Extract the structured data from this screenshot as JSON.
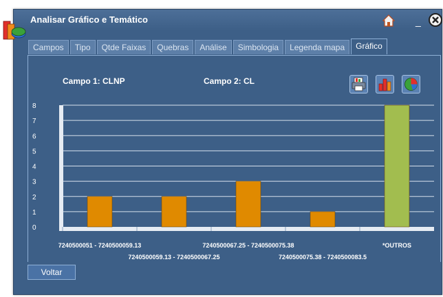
{
  "window": {
    "title": "Analisar Gráfico e Temático"
  },
  "tabs": [
    {
      "label": "Campos"
    },
    {
      "label": "Tipo"
    },
    {
      "label": "Qtde Faixas"
    },
    {
      "label": "Quebras"
    },
    {
      "label": "Análise"
    },
    {
      "label": "Simbologia"
    },
    {
      "label": "Legenda mapa"
    },
    {
      "label": "Gráfico",
      "active": true
    }
  ],
  "fields": {
    "campo1": "Campo 1: CLNP",
    "campo2": "Campo 2: CL"
  },
  "chart_buttons": [
    {
      "icon": "printer-icon"
    },
    {
      "icon": "bar-chart-icon"
    },
    {
      "icon": "pie-chart-icon"
    }
  ],
  "chart_data": {
    "type": "bar",
    "categories": [
      "7240500051 - 7240500059.13",
      "7240500059.13 - 7240500067.25",
      "7240500067.25 - 7240500075.38",
      "7240500075.38 - 7240500083.5",
      "*OUTROS"
    ],
    "values": [
      2,
      2,
      3,
      1,
      8
    ],
    "colors": [
      "#e08a00",
      "#e08a00",
      "#e08a00",
      "#e08a00",
      "#a2bd4f"
    ],
    "ylim": [
      0,
      8
    ],
    "yticks": [
      0,
      1,
      2,
      3,
      4,
      5,
      6,
      7,
      8
    ],
    "grid": true,
    "title": "",
    "xlabel": "",
    "ylabel": ""
  },
  "footer": {
    "back_label": "Voltar"
  }
}
